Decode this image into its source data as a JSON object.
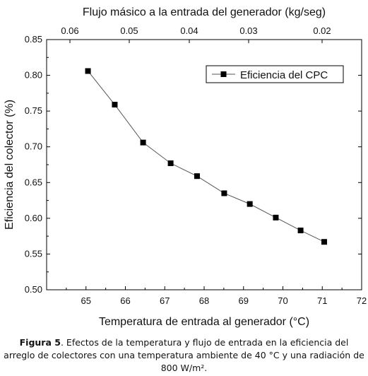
{
  "chart_data": {
    "type": "line",
    "xlabel": "Temperatura de entrada al generador (°C)",
    "ylabel": "Eficiencia del colector (%)",
    "x2label": "Flujo másico a la entrada del generador (kg/seg)",
    "xlim": [
      64,
      72
    ],
    "ylim": [
      0.5,
      0.85
    ],
    "xticks": [
      "65",
      "66",
      "67",
      "68",
      "69",
      "70",
      "71",
      "72"
    ],
    "yticks": [
      "0.50",
      "0.55",
      "0.60",
      "0.65",
      "0.70",
      "0.75",
      "0.80",
      "0.85"
    ],
    "x2ticks": [
      {
        "label": "0.06",
        "at": 65.0
      },
      {
        "label": "0.05",
        "at": 66.2
      },
      {
        "label": "0.04",
        "at": 67.4
      },
      {
        "label": "0.03",
        "at": 68.6
      },
      {
        "label": "0.02",
        "at": 69.8
      }
    ],
    "legend": "top-right",
    "grid": false,
    "series": [
      {
        "name": "Eficiencia del CPC",
        "color": "#000000",
        "marker": "square",
        "x": [
          65.05,
          65.73,
          66.45,
          67.15,
          67.82,
          68.51,
          69.16,
          69.82,
          70.45,
          71.05
        ],
        "y": [
          0.806,
          0.759,
          0.706,
          0.677,
          0.659,
          0.635,
          0.62,
          0.601,
          0.583,
          0.567
        ]
      }
    ]
  },
  "caption": {
    "label": "Figura 5",
    "text": ". Efectos de la temperatura y flujo de entrada en la eficiencia del arreglo de colectores con una temperatura ambiente de 40 °C y una radiación de 800 W/m²."
  }
}
